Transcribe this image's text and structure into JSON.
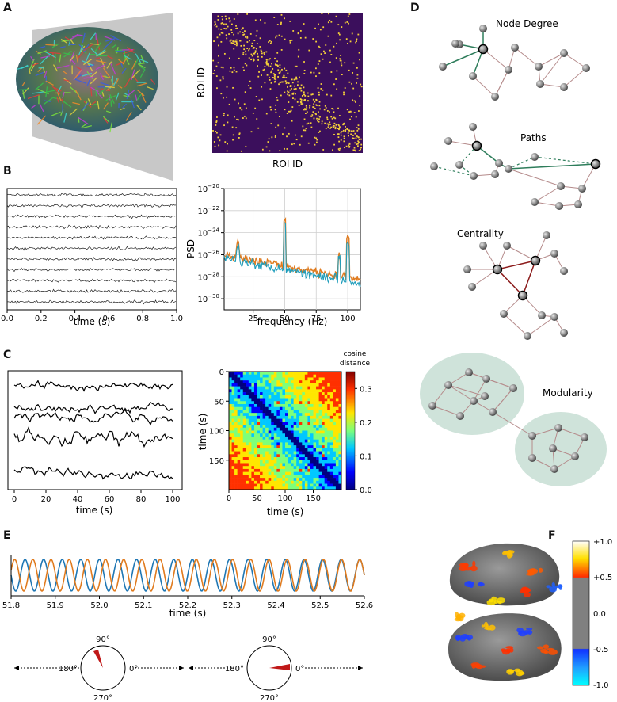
{
  "panels": {
    "A": "A",
    "B": "B",
    "C": "C",
    "D": "D",
    "E": "E",
    "F": "F"
  },
  "panel_a": {
    "matrix_xlabel": "ROI ID",
    "matrix_ylabel": "ROI ID"
  },
  "graph_labels": {
    "degree": "Node Degree",
    "paths": "Paths",
    "centrality": "Centrality",
    "modularity": "Modularity"
  },
  "phase": {
    "deg90": "90°",
    "deg180": "180°",
    "deg0": "0°",
    "deg270": "270°"
  },
  "colorbar_f": {
    "ticks": [
      "+1.0",
      "+0.5",
      "0.0",
      "-0.5",
      "-1.0"
    ],
    "colors": [
      "#ffffff",
      "#ffd000",
      "#ff4000",
      "#808080",
      "#2040ff",
      "#00ffff"
    ]
  },
  "chart_data": [
    {
      "id": "B-left",
      "type": "line",
      "xlabel": "time (s)",
      "xticks": [
        "0.0",
        "0.2",
        "0.4",
        "0.6",
        "0.8",
        "1.0"
      ],
      "xlim": [
        0,
        1
      ],
      "n_traces": 11
    },
    {
      "id": "B-right",
      "type": "line",
      "xlabel": "frequency (Hz)",
      "ylabel": "PSD",
      "xticks": [
        "25",
        "50",
        "75",
        "100"
      ],
      "yticks": [
        "10",
        "10",
        "10",
        "10",
        "10",
        "10"
      ],
      "yexp": [
        "−20",
        "−22",
        "−24",
        "−26",
        "−28",
        "−30"
      ],
      "yscale": "log",
      "ylim": [
        1e-31,
        1e-20
      ],
      "xlim": [
        2,
        110
      ],
      "grid": true,
      "series": [
        {
          "color": "#e07b1f",
          "peaks_hz": [
            13,
            50,
            100
          ]
        },
        {
          "color": "#1f9dbb",
          "peaks_hz": [
            13,
            50,
            100
          ]
        }
      ]
    },
    {
      "id": "C-left",
      "type": "line",
      "xlabel": "time (s)",
      "xticks": [
        "0",
        "20",
        "40",
        "60",
        "80",
        "100"
      ],
      "xlim": [
        0,
        100
      ],
      "n_traces": 5
    },
    {
      "id": "C-right",
      "type": "heatmap",
      "xlabel": "time (s)",
      "ylabel": "time (s)",
      "xticks": [
        "0",
        "50",
        "100",
        "150"
      ],
      "yticks": [
        "0",
        "50",
        "100",
        "150"
      ],
      "colorbar_label_1": "cosine",
      "colorbar_label_2": "distance",
      "colorbar_ticks": [
        "0.3",
        "0.2",
        "0.1",
        "0.0"
      ],
      "range": [
        0,
        0.35
      ]
    },
    {
      "id": "E",
      "type": "line",
      "xlabel": "time (s)",
      "xticks": [
        "51.8",
        "51.9",
        "52.0",
        "52.1",
        "52.2",
        "52.3",
        "52.4",
        "52.5",
        "52.6"
      ],
      "xlim": [
        51.8,
        52.6
      ],
      "series": [
        {
          "color": "#1f77b4"
        },
        {
          "color": "#e07b1f"
        }
      ]
    }
  ]
}
